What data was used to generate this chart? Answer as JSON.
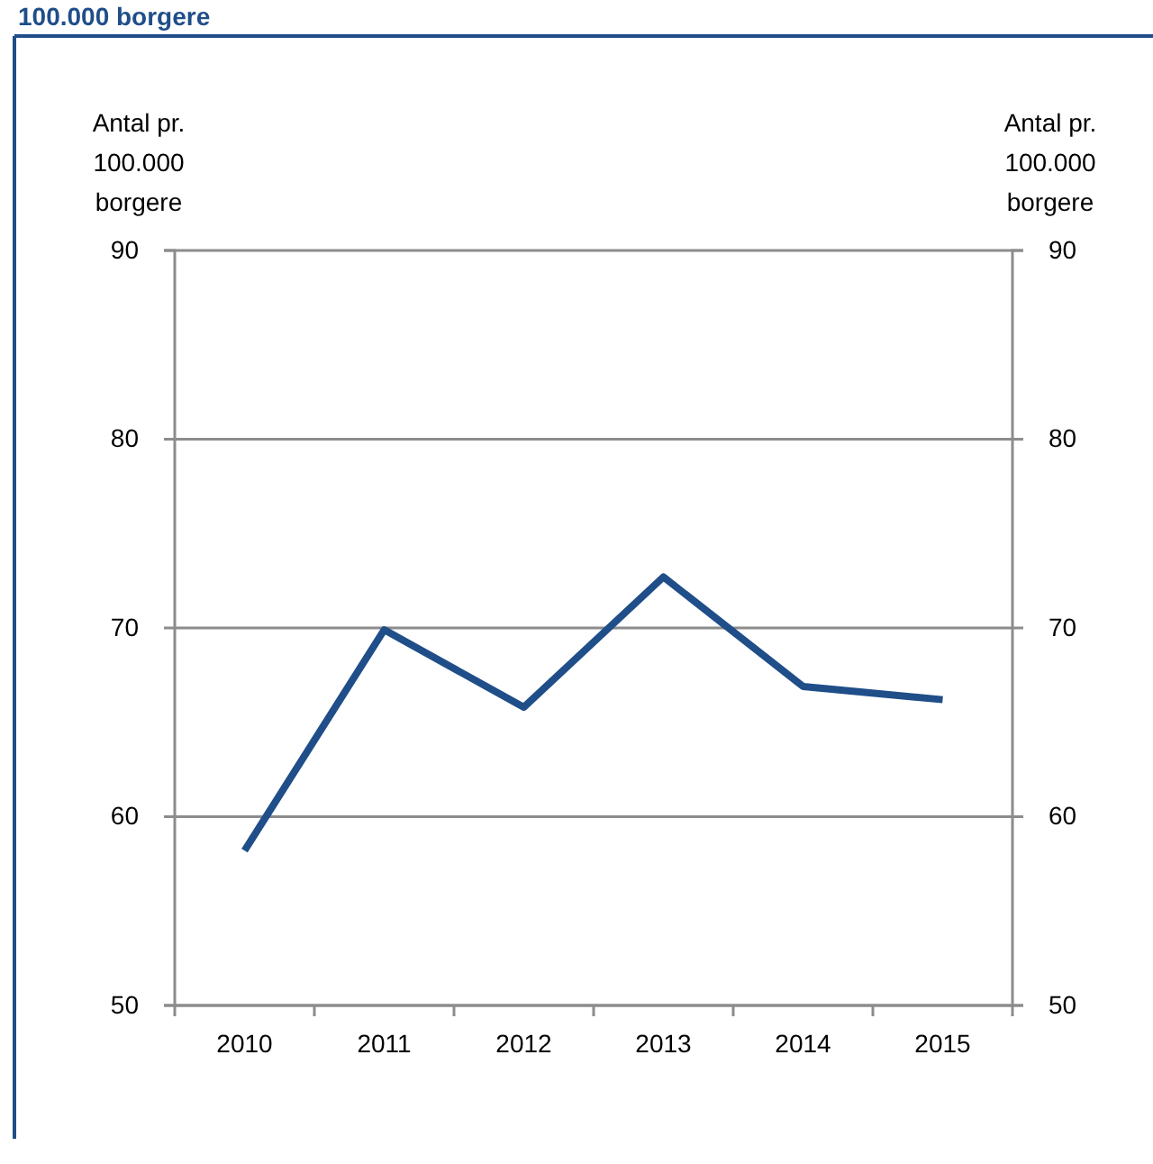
{
  "chart_data": {
    "type": "line",
    "title": "100.000 borgere",
    "categories": [
      "2010",
      "2011",
      "2012",
      "2013",
      "2014",
      "2015"
    ],
    "series": [
      {
        "color": "#1f4e89",
        "values": [
          58.2,
          69.9,
          65.8,
          72.7,
          66.9,
          66.2
        ]
      }
    ],
    "ylabel": "Antal pr. 100.000 borgere",
    "y2label": "Antal pr. 100.000 borgere",
    "ylim": [
      50,
      90
    ],
    "yticks": [
      50,
      60,
      70,
      80,
      90
    ],
    "y2lim": [
      50,
      90
    ],
    "y2ticks": [
      50,
      60,
      70,
      80,
      90
    ],
    "grid": "y",
    "legend": false,
    "marker": "none",
    "line_style": "solid"
  }
}
